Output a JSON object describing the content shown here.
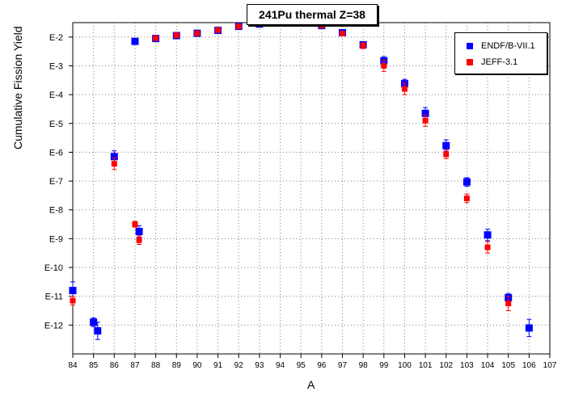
{
  "chart_data": {
    "type": "scatter",
    "title": "241Pu thermal Z=38",
    "xlabel": "A",
    "ylabel": "Cumulative Fission Yield",
    "xlim": [
      84,
      107
    ],
    "ylim_exponent": [
      -13,
      -1.5
    ],
    "y_scale": "log",
    "x_ticks": [
      84,
      85,
      86,
      87,
      88,
      89,
      90,
      91,
      92,
      93,
      94,
      95,
      96,
      97,
      98,
      99,
      100,
      101,
      102,
      103,
      104,
      105,
      106,
      107
    ],
    "y_ticks": [
      {
        "exp": -2,
        "label": "E-2"
      },
      {
        "exp": -3,
        "label": "E-3"
      },
      {
        "exp": -4,
        "label": "E-4"
      },
      {
        "exp": -5,
        "label": "E-5"
      },
      {
        "exp": -6,
        "label": "E-6"
      },
      {
        "exp": -7,
        "label": "E-7"
      },
      {
        "exp": -8,
        "label": "E-8"
      },
      {
        "exp": -9,
        "label": "E-9"
      },
      {
        "exp": -10,
        "label": "E-10"
      },
      {
        "exp": -11,
        "label": "E-11"
      },
      {
        "exp": -12,
        "label": "E-12"
      }
    ],
    "grid": true,
    "legend_position": "top-right",
    "series": [
      {
        "name": "ENDF/B-VII.1",
        "color": "#0000ff",
        "marker": "square",
        "x": [
          84,
          85,
          85.2,
          86,
          87,
          87.2,
          88,
          89,
          90,
          91,
          92,
          93,
          94,
          95,
          96,
          97,
          98,
          99,
          100,
          101,
          102,
          103,
          104,
          105,
          106
        ],
        "log10_y": [
          -10.8,
          -11.9,
          -12.2,
          -6.15,
          -2.15,
          -8.75,
          -2.05,
          -1.95,
          -1.87,
          -1.77,
          -1.63,
          -1.55,
          -1.47,
          -1.47,
          -1.6,
          -1.85,
          -2.27,
          -2.83,
          -3.62,
          -4.65,
          -5.77,
          -7.03,
          -8.87,
          -11.05,
          -12.1
        ],
        "err_log10": [
          0.3,
          0.15,
          0.3,
          0.2,
          0.05,
          0.2,
          0.05,
          0.05,
          0.05,
          0.05,
          0.05,
          0.05,
          0.05,
          0.05,
          0.05,
          0.08,
          0.1,
          0.15,
          0.15,
          0.2,
          0.2,
          0.15,
          0.2,
          0.15,
          0.3
        ]
      },
      {
        "name": "JEFF-3.1",
        "color": "#ff0000",
        "marker": "square",
        "x": [
          84,
          86,
          87,
          87.2,
          88,
          89,
          90,
          91,
          92,
          93,
          94,
          95,
          96,
          97,
          98,
          99,
          100,
          101,
          102,
          103,
          104,
          105
        ],
        "log10_y": [
          -11.15,
          -6.4,
          -8.5,
          -9.05,
          -2.04,
          -1.94,
          -1.87,
          -1.76,
          -1.63,
          -1.54,
          -1.47,
          -1.47,
          -1.6,
          -1.88,
          -2.3,
          -3.0,
          -3.8,
          -4.9,
          -6.07,
          -7.6,
          -9.3,
          -11.25
        ],
        "err_log10": [
          0.15,
          0.2,
          0.1,
          0.15,
          0.05,
          0.05,
          0.05,
          0.05,
          0.05,
          0.05,
          0.05,
          0.05,
          0.05,
          0.05,
          0.1,
          0.2,
          0.2,
          0.2,
          0.15,
          0.15,
          0.2,
          0.25
        ]
      }
    ]
  }
}
